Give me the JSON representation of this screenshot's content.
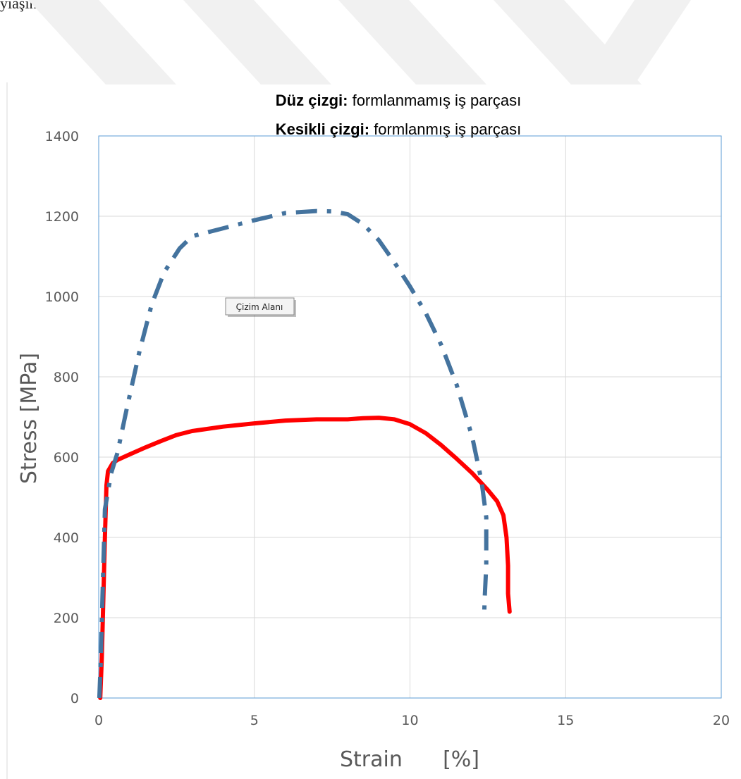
{
  "page_fragment": {
    "text": "yiaşınmıştır."
  },
  "chart_data": {
    "type": "line",
    "title_lines": [
      {
        "bold": "Düz çizgi:",
        "rest": " formlanmamış iş parçası"
      },
      {
        "bold": "Kesikli çizgi:",
        "rest": " formlanmış iş parçası"
      }
    ],
    "xlabel": "Strain      [%]",
    "ylabel": "Stress [MPa]",
    "xlim": [
      0,
      20
    ],
    "ylim": [
      0,
      1400
    ],
    "xticks": [
      0,
      5,
      10,
      15,
      20
    ],
    "yticks": [
      0,
      200,
      400,
      600,
      800,
      1000,
      1200,
      1400
    ],
    "grid": true,
    "tooltip": "Çizim Alanı",
    "series": [
      {
        "style": "solid",
        "color": "#ff0000",
        "points": [
          [
            0.05,
            0
          ],
          [
            0.1,
            100
          ],
          [
            0.15,
            250
          ],
          [
            0.2,
            400
          ],
          [
            0.25,
            530
          ],
          [
            0.3,
            565
          ],
          [
            0.45,
            585
          ],
          [
            0.6,
            593
          ],
          [
            1,
            607
          ],
          [
            1.5,
            624
          ],
          [
            2,
            640
          ],
          [
            2.5,
            655
          ],
          [
            3,
            665
          ],
          [
            4,
            676
          ],
          [
            5,
            684
          ],
          [
            6,
            691
          ],
          [
            7,
            694
          ],
          [
            8,
            694
          ],
          [
            8.5,
            697
          ],
          [
            9,
            698
          ],
          [
            9.5,
            694
          ],
          [
            10,
            682
          ],
          [
            10.5,
            660
          ],
          [
            11,
            630
          ],
          [
            11.5,
            596
          ],
          [
            12,
            560
          ],
          [
            12.5,
            518
          ],
          [
            12.8,
            490
          ],
          [
            13,
            455
          ],
          [
            13.1,
            400
          ],
          [
            13.15,
            330
          ],
          [
            13.15,
            260
          ],
          [
            13.2,
            215
          ]
        ]
      },
      {
        "style": "dashdot",
        "color": "#44739e",
        "points": [
          [
            0.02,
            0
          ],
          [
            0.07,
            100
          ],
          [
            0.12,
            250
          ],
          [
            0.2,
            470
          ],
          [
            0.4,
            560
          ],
          [
            0.6,
            610
          ],
          [
            0.9,
            720
          ],
          [
            1.3,
            860
          ],
          [
            1.7,
            980
          ],
          [
            2.1,
            1060
          ],
          [
            2.6,
            1120
          ],
          [
            3,
            1150
          ],
          [
            4,
            1170
          ],
          [
            5,
            1190
          ],
          [
            6,
            1208
          ],
          [
            7,
            1213
          ],
          [
            7.5,
            1212
          ],
          [
            8,
            1205
          ],
          [
            8.5,
            1180
          ],
          [
            9,
            1140
          ],
          [
            9.5,
            1085
          ],
          [
            10,
            1025
          ],
          [
            10.5,
            960
          ],
          [
            11,
            880
          ],
          [
            11.5,
            780
          ],
          [
            12,
            650
          ],
          [
            12.3,
            540
          ],
          [
            12.45,
            450
          ],
          [
            12.45,
            330
          ],
          [
            12.4,
            250
          ],
          [
            12.38,
            200
          ]
        ]
      }
    ]
  }
}
